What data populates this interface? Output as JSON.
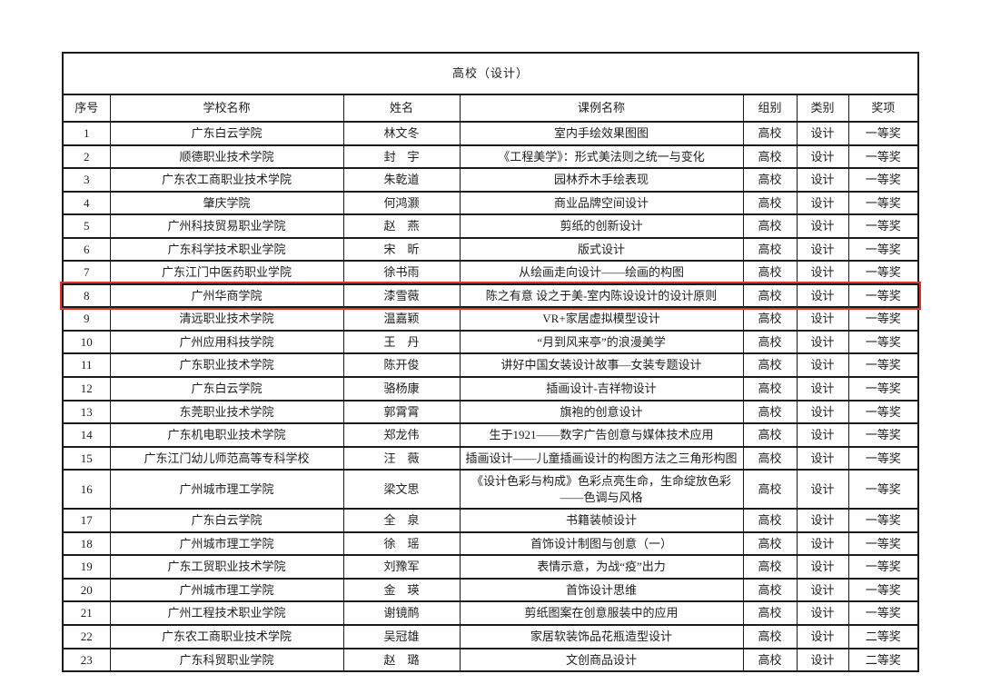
{
  "table": {
    "title": "高校（设计）",
    "columns": [
      "序号",
      "学校名称",
      "姓名",
      "课例名称",
      "组别",
      "类别",
      "奖项"
    ],
    "highlight_color": "#e03326",
    "rows": [
      {
        "no": "1",
        "school": "广东白云学院",
        "name": "林文冬",
        "lesson": "室内手绘效果图图",
        "group": "高校",
        "category": "设计",
        "award": "一等奖",
        "highlight": false
      },
      {
        "no": "2",
        "school": "顺德职业技术学院",
        "name": "封　宇",
        "lesson": "《工程美学》：形式美法则之统一与变化",
        "group": "高校",
        "category": "设计",
        "award": "一等奖",
        "highlight": false
      },
      {
        "no": "3",
        "school": "广东农工商职业技术学院",
        "name": "朱乾道",
        "lesson": "园林乔木手绘表现",
        "group": "高校",
        "category": "设计",
        "award": "一等奖",
        "highlight": false
      },
      {
        "no": "4",
        "school": "肇庆学院",
        "name": "何鸿灏",
        "lesson": "商业品牌空间设计",
        "group": "高校",
        "category": "设计",
        "award": "一等奖",
        "highlight": false
      },
      {
        "no": "5",
        "school": "广州科技贸易职业学院",
        "name": "赵　燕",
        "lesson": "剪纸的创新设计",
        "group": "高校",
        "category": "设计",
        "award": "一等奖",
        "highlight": false
      },
      {
        "no": "6",
        "school": "广东科学技术职业学院",
        "name": "宋　昕",
        "lesson": "版式设计",
        "group": "高校",
        "category": "设计",
        "award": "一等奖",
        "highlight": false
      },
      {
        "no": "7",
        "school": "广东江门中医药职业学院",
        "name": "徐书雨",
        "lesson": "从绘画走向设计——绘画的构图",
        "group": "高校",
        "category": "设计",
        "award": "一等奖",
        "highlight": false
      },
      {
        "no": "8",
        "school": "广州华商学院",
        "name": "漆雪薇",
        "lesson": "陈之有意 设之于美-室内陈设设计的设计原则",
        "group": "高校",
        "category": "设计",
        "award": "一等奖",
        "highlight": true
      },
      {
        "no": "9",
        "school": "清远职业技术学院",
        "name": "温嘉颖",
        "lesson": "VR+家居虚拟模型设计",
        "group": "高校",
        "category": "设计",
        "award": "一等奖",
        "highlight": false
      },
      {
        "no": "10",
        "school": "广州应用科技学院",
        "name": "王　丹",
        "lesson": "“月到风来亭”的浪漫美学",
        "group": "高校",
        "category": "设计",
        "award": "一等奖",
        "highlight": false
      },
      {
        "no": "11",
        "school": "广东职业技术学院",
        "name": "陈开俊",
        "lesson": "讲好中国女装设计故事—女装专题设计",
        "group": "高校",
        "category": "设计",
        "award": "一等奖",
        "highlight": false
      },
      {
        "no": "12",
        "school": "广东白云学院",
        "name": "骆杨康",
        "lesson": "插画设计-吉祥物设计",
        "group": "高校",
        "category": "设计",
        "award": "一等奖",
        "highlight": false
      },
      {
        "no": "13",
        "school": "东莞职业技术学院",
        "name": "郭霄霄",
        "lesson": "旗袍的创意设计",
        "group": "高校",
        "category": "设计",
        "award": "一等奖",
        "highlight": false
      },
      {
        "no": "14",
        "school": "广东机电职业技术学院",
        "name": "郑龙伟",
        "lesson": "生于1921——数字广告创意与媒体技术应用",
        "group": "高校",
        "category": "设计",
        "award": "一等奖",
        "highlight": false
      },
      {
        "no": "15",
        "school": "广东江门幼儿师范高等专科学校",
        "name": "汪　薇",
        "lesson": "插画设计——儿童插画设计的构图方法之三角形构图",
        "group": "高校",
        "category": "设计",
        "award": "一等奖",
        "highlight": false
      },
      {
        "no": "16",
        "school": "广州城市理工学院",
        "name": "梁文思",
        "lesson": "《设计色彩与构成》色彩点亮生命，生命绽放色彩——色调与风格",
        "group": "高校",
        "category": "设计",
        "award": "一等奖",
        "highlight": false
      },
      {
        "no": "17",
        "school": "广东白云学院",
        "name": "全　泉",
        "lesson": "书籍装帧设计",
        "group": "高校",
        "category": "设计",
        "award": "一等奖",
        "highlight": false
      },
      {
        "no": "18",
        "school": "广州城市理工学院",
        "name": "徐　瑶",
        "lesson": "首饰设计制图与创意（一）",
        "group": "高校",
        "category": "设计",
        "award": "一等奖",
        "highlight": false
      },
      {
        "no": "19",
        "school": "广东工贸职业技术学院",
        "name": "刘豫军",
        "lesson": "表情示意，为战“疫”出力",
        "group": "高校",
        "category": "设计",
        "award": "一等奖",
        "highlight": false
      },
      {
        "no": "20",
        "school": "广州城市理工学院",
        "name": "金　瑛",
        "lesson": "首饰设计思维",
        "group": "高校",
        "category": "设计",
        "award": "一等奖",
        "highlight": false
      },
      {
        "no": "21",
        "school": "广州工程技术职业学院",
        "name": "谢镜鸸",
        "lesson": "剪纸图案在创意服装中的应用",
        "group": "高校",
        "category": "设计",
        "award": "一等奖",
        "highlight": false
      },
      {
        "no": "22",
        "school": "广东农工商职业技术学院",
        "name": "吴冠雄",
        "lesson": "家居软装饰品花瓶造型设计",
        "group": "高校",
        "category": "设计",
        "award": "二等奖",
        "highlight": false
      },
      {
        "no": "23",
        "school": "广东科贸职业学院",
        "name": "赵　璐",
        "lesson": "文创商品设计",
        "group": "高校",
        "category": "设计",
        "award": "二等奖",
        "highlight": false
      }
    ]
  }
}
